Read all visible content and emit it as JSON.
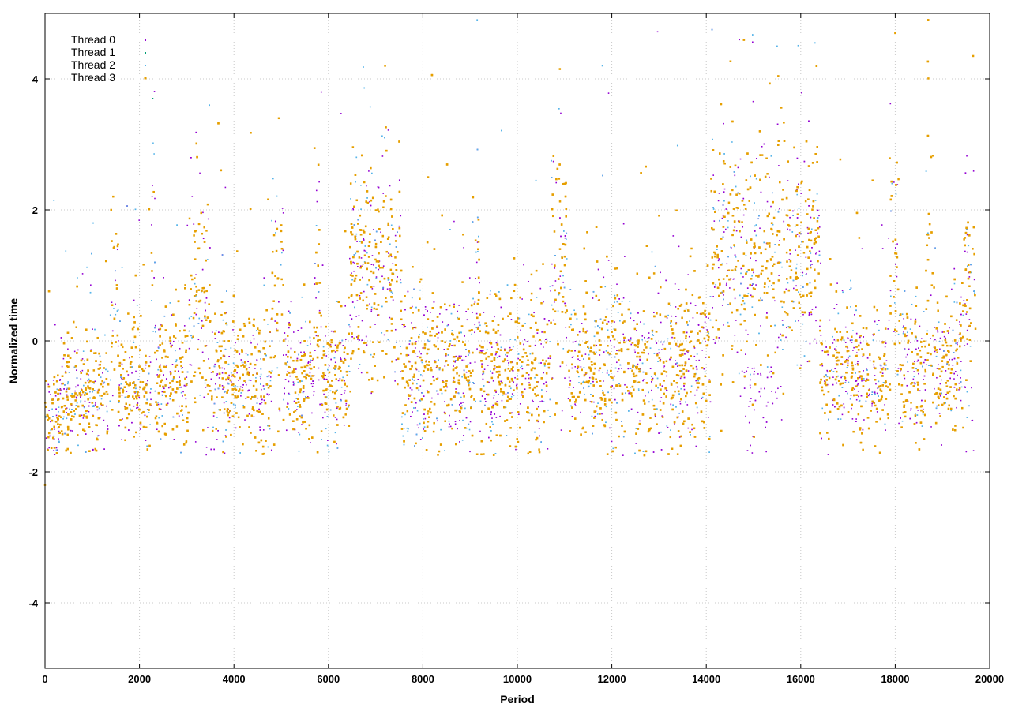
{
  "chart_data": {
    "type": "scatter",
    "title": "",
    "xlabel": "Period",
    "ylabel": "Normalized time",
    "xlim": [
      0,
      20000
    ],
    "ylim": [
      -5,
      5
    ],
    "x_ticks": [
      0,
      2000,
      4000,
      6000,
      8000,
      10000,
      12000,
      14000,
      16000,
      18000,
      20000
    ],
    "y_ticks": [
      -4,
      -2,
      0,
      2,
      4
    ],
    "x_tick_labels": [
      "0",
      "2000",
      "4000",
      "6000",
      "8000",
      "10000",
      "12000",
      "14000",
      "16000",
      "18000",
      "20000"
    ],
    "y_tick_labels": [
      "-4",
      "-2",
      "0",
      "2",
      "4"
    ],
    "grid": true,
    "legend": "top-left",
    "x_max_data": 19700,
    "points_per_series": 4500,
    "series": [
      {
        "name": "Thread 0",
        "color": "#9400d3",
        "marker": "point"
      },
      {
        "name": "Thread 1",
        "color": "#009e73",
        "marker": "point"
      },
      {
        "name": "Thread 2",
        "color": "#56b4e9",
        "marker": "point"
      },
      {
        "name": "Thread 3",
        "color": "#e69f00",
        "marker": "square"
      }
    ],
    "segments": [
      {
        "x": [
          0,
          300
        ],
        "base": -1.2,
        "spread": 0.35
      },
      {
        "x": [
          300,
          1350
        ],
        "base": -0.9,
        "spread": 0.4
      },
      {
        "x": [
          1350,
          1550
        ],
        "base": 0.4,
        "spread": 1.0
      },
      {
        "x": [
          1550,
          2250
        ],
        "base": -0.7,
        "spread": 0.45
      },
      {
        "x": [
          2250,
          2330
        ],
        "base": 0.8,
        "spread": 1.3
      },
      {
        "x": [
          2330,
          3050
        ],
        "base": -0.6,
        "spread": 0.5
      },
      {
        "x": [
          3050,
          3500
        ],
        "base": 0.5,
        "spread": 1.0
      },
      {
        "x": [
          3500,
          4800
        ],
        "base": -0.6,
        "spread": 0.5
      },
      {
        "x": [
          4800,
          5050
        ],
        "base": 0.7,
        "spread": 1.1
      },
      {
        "x": [
          5050,
          5700
        ],
        "base": -0.6,
        "spread": 0.5
      },
      {
        "x": [
          5700,
          5850
        ],
        "base": 0.5,
        "spread": 0.9
      },
      {
        "x": [
          5850,
          6450
        ],
        "base": -0.6,
        "spread": 0.5
      },
      {
        "x": [
          6450,
          7550
        ],
        "base": 1.0,
        "spread": 0.9
      },
      {
        "x": [
          7550,
          9050
        ],
        "base": -0.5,
        "spread": 0.55
      },
      {
        "x": [
          9050,
          9200
        ],
        "base": 0.5,
        "spread": 1.0
      },
      {
        "x": [
          9200,
          10700
        ],
        "base": -0.5,
        "spread": 0.55
      },
      {
        "x": [
          10700,
          11050
        ],
        "base": 0.9,
        "spread": 0.95
      },
      {
        "x": [
          11050,
          14100
        ],
        "base": -0.4,
        "spread": 0.6
      },
      {
        "x": [
          14100,
          16400
        ],
        "base": 1.3,
        "spread": 0.9
      },
      {
        "x": [
          16400,
          17850
        ],
        "base": -0.5,
        "spread": 0.5
      },
      {
        "x": [
          17850,
          18050
        ],
        "base": 1.2,
        "spread": 1.1
      },
      {
        "x": [
          18050,
          18650
        ],
        "base": -0.5,
        "spread": 0.5
      },
      {
        "x": [
          18650,
          18800
        ],
        "base": 1.0,
        "spread": 1.2
      },
      {
        "x": [
          18800,
          19450
        ],
        "base": -0.4,
        "spread": 0.55
      },
      {
        "x": [
          19450,
          19700
        ],
        "base": 0.6,
        "spread": 1.0
      }
    ],
    "floor": -1.75,
    "outliers": [
      {
        "x": 9150,
        "y": 4.9,
        "series": 2
      },
      {
        "x": 18700,
        "y": 4.9,
        "series": 3
      },
      {
        "x": 18000,
        "y": 4.7,
        "series": 3
      },
      {
        "x": 14700,
        "y": 4.6,
        "series": 0
      },
      {
        "x": 7200,
        "y": 4.2,
        "series": 3
      },
      {
        "x": 10900,
        "y": 4.15,
        "series": 3
      },
      {
        "x": 19650,
        "y": 4.35,
        "series": 3
      },
      {
        "x": 11800,
        "y": 4.2,
        "series": 2
      },
      {
        "x": 5850,
        "y": 3.8,
        "series": 0
      },
      {
        "x": 2280,
        "y": 3.7,
        "series": 1
      },
      {
        "x": 3480,
        "y": 3.6,
        "series": 2
      },
      {
        "x": 4950,
        "y": 3.4,
        "series": 3
      },
      {
        "x": 15500,
        "y": 4.5,
        "series": 2
      },
      {
        "x": 16300,
        "y": 4.55,
        "series": 2
      },
      {
        "x": 0,
        "y": -2.2,
        "series": 3
      },
      {
        "x": 1400,
        "y": 2.0,
        "series": 3
      },
      {
        "x": 1020,
        "y": 1.8,
        "series": 2
      }
    ]
  }
}
